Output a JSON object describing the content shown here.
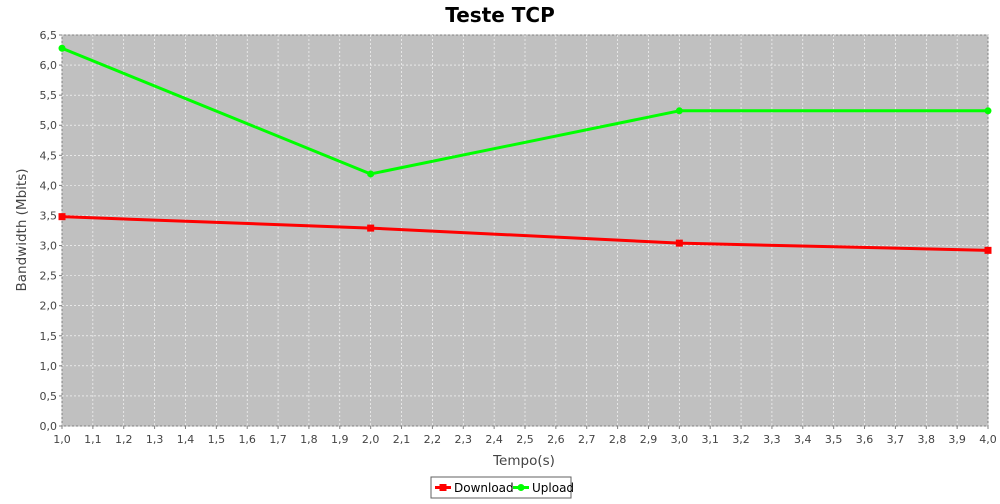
{
  "chart_data": {
    "type": "line",
    "title": "Teste TCP",
    "xlabel": "Tempo(s)",
    "ylabel": "Bandwidth (Mbits)",
    "xlim": [
      1.0,
      4.0
    ],
    "ylim": [
      0.0,
      6.5
    ],
    "x_ticks": [
      "1,0",
      "1,1",
      "1,2",
      "1,3",
      "1,4",
      "1,5",
      "1,6",
      "1,7",
      "1,8",
      "1,9",
      "2,0",
      "2,1",
      "2,2",
      "2,3",
      "2,4",
      "2,5",
      "2,6",
      "2,7",
      "2,8",
      "2,9",
      "3,0",
      "3,1",
      "3,2",
      "3,3",
      "3,4",
      "3,5",
      "3,6",
      "3,7",
      "3,8",
      "3,9",
      "4,0"
    ],
    "y_ticks": [
      "0,0",
      "0,5",
      "1,0",
      "1,5",
      "2,0",
      "2,5",
      "3,0",
      "3,5",
      "4,0",
      "4,5",
      "5,0",
      "5,5",
      "6,0",
      "6,5"
    ],
    "grid": true,
    "legend_position": "bottom-center",
    "plot_background": "#c0c0c0",
    "series": [
      {
        "name": "Download",
        "color": "#ff0000",
        "marker": "square",
        "x": [
          1.0,
          2.0,
          3.0,
          4.0
        ],
        "values": [
          3.48,
          3.29,
          3.04,
          2.92
        ]
      },
      {
        "name": "Upload",
        "color": "#00ff00",
        "marker": "circle",
        "x": [
          1.0,
          2.0,
          3.0,
          4.0
        ],
        "values": [
          6.28,
          4.19,
          5.24,
          5.24
        ]
      }
    ]
  }
}
